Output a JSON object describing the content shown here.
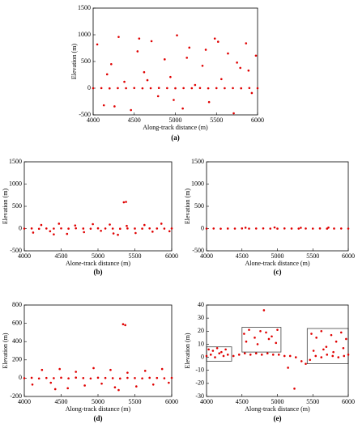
{
  "chart_data": [
    {
      "type": "scatter",
      "caption": "(a)",
      "x_label": "Along-track distance (m)",
      "y_label": "Elevation (m)",
      "color": "#e00000",
      "xlim": [
        4000,
        6000
      ],
      "xticks": [
        4000,
        4500,
        5000,
        5500,
        6000
      ],
      "ylim": [
        -500,
        1500
      ],
      "yticks": [
        -500,
        0,
        500,
        1000,
        1500
      ],
      "x": [
        4000,
        4100,
        4200,
        4300,
        4400,
        4500,
        4600,
        4700,
        4800,
        4900,
        5000,
        5100,
        5200,
        5300,
        5400,
        5500,
        5600,
        5700,
        5800,
        5900,
        6000,
        4050,
        4130,
        4220,
        4310,
        4380,
        4460,
        4540,
        4620,
        4710,
        4790,
        4870,
        4940,
        5020,
        5090,
        5170,
        5240,
        5330,
        5410,
        5480,
        5560,
        5640,
        5710,
        5790,
        5860,
        5930,
        5980,
        4170,
        4560,
        4980,
        5370,
        5750,
        4260,
        4660,
        5140,
        5520,
        5890
      ],
      "values": [
        0,
        2,
        -3,
        1,
        0,
        3,
        -2,
        0,
        4,
        1,
        -1,
        2,
        0,
        3,
        -2,
        1,
        0,
        2,
        -1,
        3,
        0,
        820,
        -320,
        450,
        960,
        120,
        -410,
        690,
        300,
        880,
        -150,
        540,
        210,
        990,
        -380,
        760,
        60,
        420,
        -260,
        930,
        170,
        650,
        -470,
        380,
        840,
        -90,
        610,
        260,
        930,
        -220,
        720,
        480,
        -340,
        150,
        570,
        870,
        330
      ]
    },
    {
      "type": "scatter",
      "caption": "(b)",
      "x_label": "Alone-track distance (m)",
      "y_label": "Elevation (m)",
      "color": "#e00000",
      "xlim": [
        4000,
        6000
      ],
      "xticks": [
        4000,
        4500,
        5000,
        5500,
        6000
      ],
      "ylim": [
        -500,
        1500
      ],
      "yticks": [
        -500,
        0,
        500,
        1000,
        1500
      ],
      "x": [
        4000,
        4100,
        4200,
        4300,
        4400,
        4500,
        4600,
        4700,
        4800,
        4900,
        5000,
        5100,
        5200,
        5300,
        5400,
        5500,
        5600,
        5700,
        5800,
        5900,
        6000,
        4120,
        4230,
        4350,
        4470,
        4580,
        4690,
        4810,
        4930,
        5040,
        5160,
        5270,
        5390,
        5510,
        5630,
        5740,
        5860,
        5970,
        5350,
        5380,
        4400,
        5210
      ],
      "values": [
        0,
        3,
        -5,
        2,
        0,
        4,
        -2,
        6,
        1,
        -3,
        5,
        2,
        0,
        -4,
        3,
        1,
        -2,
        4,
        2,
        -1,
        3,
        -90,
        80,
        -60,
        110,
        -120,
        70,
        -80,
        100,
        -50,
        90,
        -140,
        60,
        -100,
        80,
        -70,
        110,
        -60,
        590,
        600,
        -130,
        -110
      ]
    },
    {
      "type": "scatter",
      "caption": "(c)",
      "x_label": "Alone-track distance (m)",
      "y_label": "Elevation (m)",
      "color": "#e00000",
      "xlim": [
        4000,
        6000
      ],
      "xticks": [
        4000,
        4500,
        5000,
        5500,
        6000
      ],
      "ylim": [
        -500,
        1500
      ],
      "yticks": [
        -500,
        0,
        500,
        1000,
        1500
      ],
      "x": [
        4000,
        4100,
        4200,
        4300,
        4400,
        4500,
        4600,
        4700,
        4800,
        4900,
        5000,
        5100,
        5200,
        5300,
        5400,
        5500,
        5600,
        5700,
        5800,
        5900,
        6000,
        4550,
        4960,
        5330,
        5720
      ],
      "values": [
        0,
        2,
        -3,
        1,
        0,
        3,
        -1,
        2,
        4,
        0,
        -2,
        3,
        1,
        -1,
        2,
        0,
        3,
        -2,
        1,
        2,
        0,
        20,
        25,
        18,
        22
      ]
    },
    {
      "type": "scatter",
      "caption": "(d)",
      "x_label": "Along-track distance (m)",
      "y_label": "Elevation (m)",
      "color": "#e00000",
      "xlim": [
        4000,
        6000
      ],
      "xticks": [
        4000,
        4500,
        5000,
        5500,
        6000
      ],
      "ylim": [
        -200,
        800
      ],
      "yticks": [
        -200,
        0,
        200,
        400,
        600,
        800
      ],
      "x": [
        4000,
        4100,
        4200,
        4300,
        4400,
        4500,
        4600,
        4700,
        4800,
        4900,
        5000,
        5100,
        5200,
        5300,
        5400,
        5500,
        5600,
        5700,
        5800,
        5900,
        6000,
        4110,
        4240,
        4360,
        4480,
        4590,
        4700,
        4820,
        4940,
        5050,
        5170,
        5280,
        5400,
        5520,
        5640,
        5750,
        5870,
        5960,
        5340,
        5370,
        4420,
        5230
      ],
      "values": [
        0,
        4,
        -3,
        2,
        0,
        5,
        -2,
        6,
        1,
        -3,
        5,
        2,
        0,
        -4,
        3,
        1,
        -2,
        4,
        2,
        -1,
        3,
        -70,
        90,
        -50,
        100,
        -110,
        70,
        -80,
        110,
        -60,
        90,
        -130,
        60,
        -90,
        80,
        -70,
        100,
        -50,
        590,
        580,
        -120,
        -100
      ]
    },
    {
      "type": "scatter",
      "caption": "(e)",
      "x_label": "Along-track distance (m)",
      "y_label": "Elevation (m)",
      "color": "#e00000",
      "xlim": [
        4000,
        6000
      ],
      "xticks": [
        4000,
        4500,
        5000,
        5500,
        6000
      ],
      "ylim": [
        -30,
        40
      ],
      "yticks": [
        -30,
        -20,
        -10,
        0,
        10,
        20,
        30,
        40
      ],
      "x": [
        4000,
        4060,
        4120,
        4180,
        4240,
        4300,
        4380,
        4460,
        4540,
        4620,
        4700,
        4780,
        4860,
        4940,
        5020,
        5100,
        5180,
        5260,
        5340,
        5400,
        5460,
        5540,
        5620,
        5700,
        5780,
        5860,
        5940,
        6000,
        4030,
        4090,
        4150,
        4210,
        4270,
        4530,
        4600,
        4680,
        4760,
        4840,
        4920,
        5000,
        4560,
        4720,
        4880,
        4980,
        5480,
        5550,
        5620,
        5690,
        5760,
        5830,
        5900,
        5970,
        5510,
        5650,
        5790,
        5930,
        4810,
        5150,
        5240
      ],
      "values": [
        1,
        2,
        0,
        3,
        1,
        2,
        1,
        2,
        3,
        2,
        3,
        2,
        3,
        2,
        2,
        1,
        1,
        0,
        -3,
        -5,
        -2,
        1,
        0,
        2,
        1,
        0,
        1,
        2,
        6,
        5,
        7,
        4,
        6,
        18,
        21,
        15,
        20,
        19,
        16,
        21,
        12,
        10,
        14,
        11,
        18,
        15,
        20,
        8,
        17,
        12,
        19,
        14,
        5,
        6,
        4,
        7,
        36,
        -8,
        -24
      ]
    }
  ]
}
